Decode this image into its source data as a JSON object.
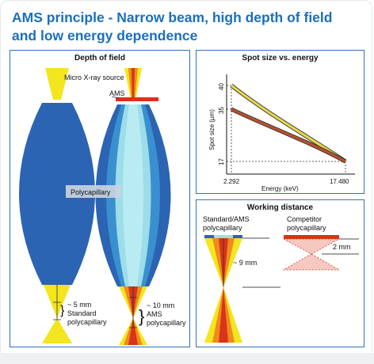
{
  "page_title_line1": "AMS principle - Narrow beam, high depth of field",
  "page_title_line2": "and low energy dependence",
  "colors": {
    "accent": "#1a6fbf",
    "panel_border": "#2c73bb",
    "lens_blue": "#2b64b2",
    "beam_yellow": "#f3e51e",
    "beam_orange": "#f08a1c",
    "beam_red": "#d9331a",
    "beam_cyan": "#9ddde9",
    "curve_yellow": "#e6d84a",
    "curve_brown": "#b8512b"
  },
  "depth_of_field": {
    "title": "Depth of field",
    "source_label": "Micro X-ray source",
    "ams_label": "AMS",
    "polycapillary_label": "Polycapillary",
    "left_label_1": "~ 5 mm",
    "left_label_2": "Standard",
    "left_label_3": "polycapillary",
    "right_label_1": "~ 10 mm",
    "right_label_2": "AMS",
    "right_label_3": "polycapillary"
  },
  "spot_chart": {
    "title": "Spot size vs. energy",
    "chart_data": {
      "type": "line",
      "title": "Spot size vs. energy",
      "xlabel": "Energy (keV)",
      "ylabel": "Spot size (µm)",
      "x_ticks": [
        "2.292",
        "17.480"
      ],
      "y_ticks": [
        "40",
        "35",
        "17"
      ],
      "xlim": [
        2.292,
        17.48
      ],
      "series": [
        {
          "color": "#e6d84a",
          "points": [
            [
              2.292,
              40
            ],
            [
              6,
              33.5
            ],
            [
              10,
              27.5
            ],
            [
              14,
              21.5
            ],
            [
              17.48,
              17
            ]
          ]
        },
        {
          "color": "#b8512b",
          "points": [
            [
              2.292,
              35
            ],
            [
              6,
              30
            ],
            [
              10,
              25
            ],
            [
              14,
              21
            ],
            [
              17.48,
              17
            ]
          ]
        }
      ]
    }
  },
  "working_distance": {
    "title": "Working distance",
    "standard_label_1": "Standard/AMS",
    "standard_label_2": "polycapillary",
    "competitor_label_1": "Competitor",
    "competitor_label_2": "polycapillary",
    "standard_distance": "~ 9 mm",
    "competitor_distance": "2 mm"
  }
}
